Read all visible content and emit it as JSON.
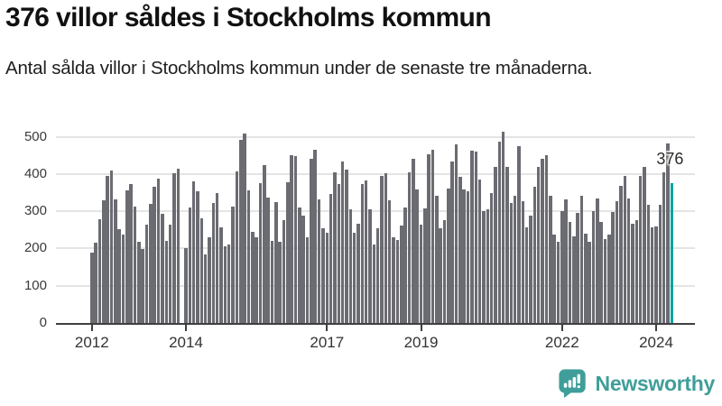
{
  "header": {
    "title": "376 villor såldes i Stockholms kommun",
    "subtitle": "Antal sålda villor i Stockholms kommun under de senaste tre månaderna."
  },
  "chart_data": {
    "type": "bar",
    "title": "376 villor såldes i Stockholms kommun",
    "subtitle": "Antal sålda villor i Stockholms kommun under de senaste tre månaderna.",
    "grid": true,
    "ylim": [
      0,
      530
    ],
    "y_ticks": [
      0,
      100,
      200,
      300,
      400,
      500
    ],
    "y_tick_labels": [
      "0",
      "100",
      "200",
      "300",
      "400",
      "500"
    ],
    "year_ticks": [
      {
        "label": "2012",
        "index": 0
      },
      {
        "label": "2014",
        "index": 24
      },
      {
        "label": "2017",
        "index": 60
      },
      {
        "label": "2019",
        "index": 84
      },
      {
        "label": "2022",
        "index": 120
      },
      {
        "label": "2024",
        "index": 144
      }
    ],
    "bar_color": "#6b6b72",
    "highlight_color": "#00a49f",
    "highlight_index": 148,
    "annotation": {
      "label": "376",
      "value": 376
    },
    "values": [
      190,
      215,
      278,
      330,
      394,
      410,
      332,
      251,
      238,
      356,
      372,
      313,
      219,
      199,
      263,
      320,
      366,
      388,
      292,
      220,
      265,
      402,
      414,
      null,
      200,
      309,
      380,
      353,
      280,
      185,
      229,
      321,
      350,
      257,
      207,
      211,
      313,
      406,
      492,
      509,
      356,
      245,
      229,
      376,
      424,
      337,
      221,
      325,
      219,
      276,
      378,
      451,
      448,
      309,
      288,
      230,
      440,
      466,
      332,
      254,
      243,
      346,
      404,
      374,
      434,
      412,
      304,
      243,
      266,
      374,
      382,
      306,
      211,
      255,
      394,
      402,
      329,
      229,
      223,
      261,
      309,
      404,
      440,
      358,
      263,
      308,
      454,
      464,
      341,
      254,
      275,
      361,
      434,
      480,
      392,
      358,
      353,
      463,
      459,
      384,
      301,
      305,
      348,
      418,
      487,
      514,
      419,
      321,
      341,
      474,
      326,
      257,
      288,
      366,
      420,
      442,
      450,
      341,
      238,
      218,
      300,
      333,
      272,
      233,
      296,
      341,
      241,
      219,
      301,
      334,
      271,
      226,
      237,
      297,
      328,
      368,
      394,
      334,
      267,
      275,
      396,
      419,
      318,
      257,
      259,
      317,
      405,
      481,
      376
    ]
  },
  "footer": {
    "brand": "Newsworthy",
    "brand_color": "#3f9e99"
  }
}
